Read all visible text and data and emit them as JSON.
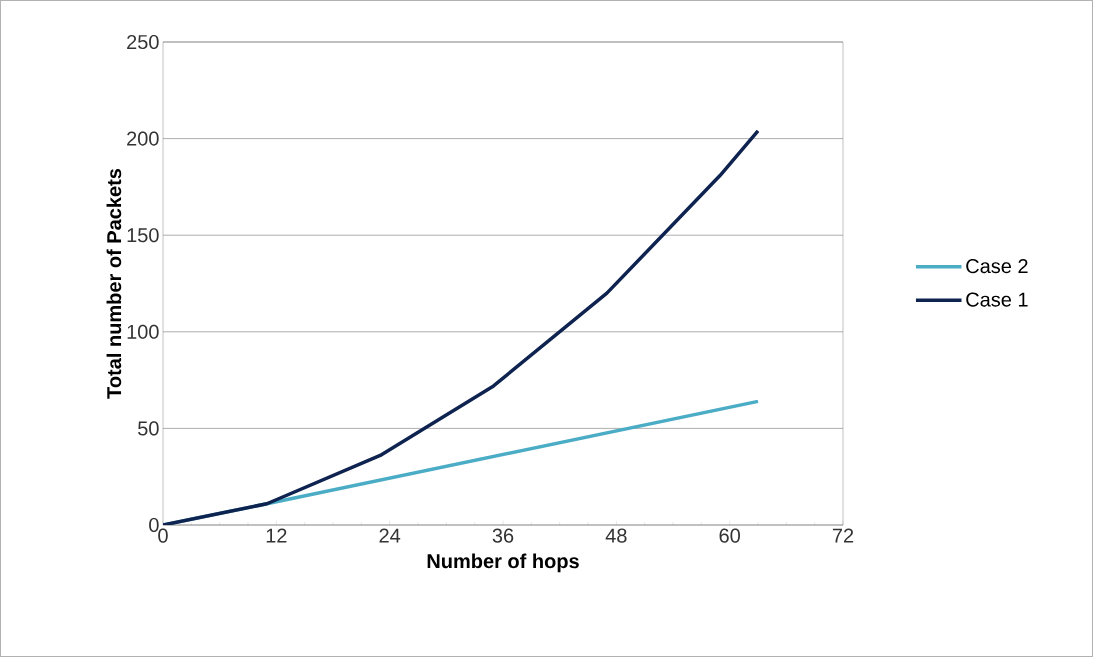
{
  "chart_data": {
    "type": "line",
    "xlabel": "Number of hops",
    "ylabel": "Total number of Packets",
    "xlim": [
      0,
      72
    ],
    "ylim": [
      0,
      250
    ],
    "xticks": [
      0,
      12,
      24,
      36,
      48,
      60,
      72
    ],
    "yticks": [
      0,
      50,
      100,
      150,
      200,
      250
    ],
    "grid": "y",
    "legend": "right",
    "marker": "none",
    "line_style": "solid",
    "series": [
      {
        "name": "Case 2",
        "color": "#4bacc6",
        "x": [
          0,
          11,
          63
        ],
        "values": [
          0,
          11,
          64
        ]
      },
      {
        "name": "Case 1",
        "color": "#0f2350",
        "x": [
          0,
          11,
          23,
          35,
          47,
          59,
          63
        ],
        "values": [
          0,
          11,
          36,
          72,
          120,
          181,
          204
        ]
      }
    ]
  }
}
